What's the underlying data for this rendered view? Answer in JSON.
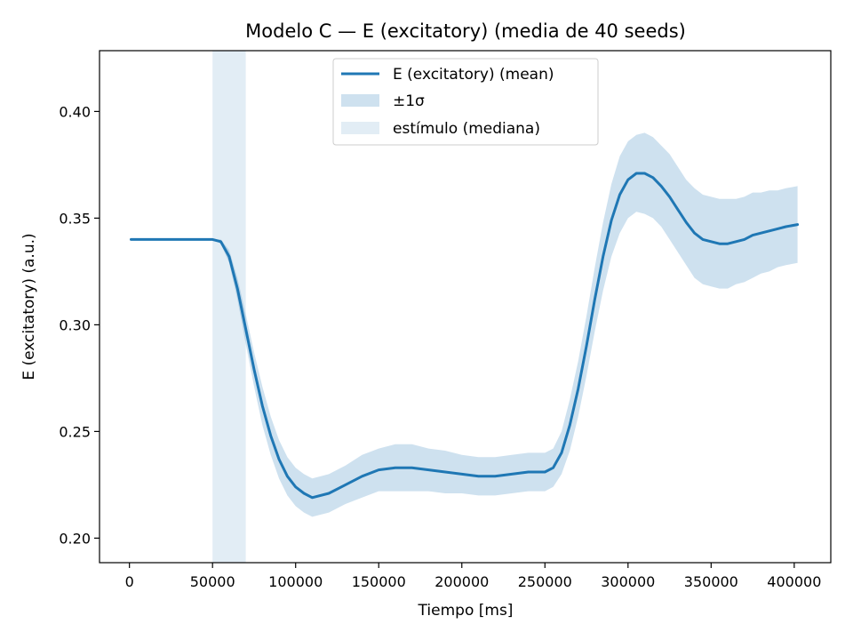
{
  "chart_data": {
    "type": "line",
    "title": "Modelo C — E (excitatory) (media de 40 seeds)",
    "xlabel": "Tiempo [ms]",
    "ylabel": "E (excitatory) (a.u.)",
    "xlim": [
      -18000,
      422000
    ],
    "ylim": [
      0.1885,
      0.4285
    ],
    "xticks": [
      0,
      50000,
      100000,
      150000,
      200000,
      250000,
      300000,
      350000,
      400000
    ],
    "xtick_labels": [
      "0",
      "50000",
      "100000",
      "150000",
      "200000",
      "250000",
      "300000",
      "350000",
      "400000"
    ],
    "yticks": [
      0.2,
      0.25,
      0.3,
      0.35,
      0.4
    ],
    "ytick_labels": [
      "0.20",
      "0.25",
      "0.30",
      "0.35",
      "0.40"
    ],
    "grid": false,
    "legend_position": "top-center",
    "legend": [
      "E (excitatory) (mean)",
      "±1σ",
      "estímulo (mediana)"
    ],
    "colors": {
      "mean": "#1f77b4",
      "band": "#1f77b4",
      "stimulus": "#1f77b4"
    },
    "stimulus": {
      "x_start": 50000,
      "x_end": 70000
    },
    "series": [
      {
        "name": "E (excitatory) (mean)",
        "x": [
          1000,
          20000,
          40000,
          50000,
          55000,
          60000,
          65000,
          70000,
          75000,
          80000,
          85000,
          90000,
          95000,
          100000,
          105000,
          110000,
          120000,
          130000,
          140000,
          150000,
          160000,
          170000,
          180000,
          190000,
          200000,
          210000,
          220000,
          230000,
          240000,
          250000,
          255000,
          260000,
          265000,
          270000,
          275000,
          280000,
          285000,
          290000,
          295000,
          300000,
          305000,
          310000,
          315000,
          320000,
          325000,
          330000,
          335000,
          340000,
          345000,
          350000,
          355000,
          360000,
          365000,
          370000,
          375000,
          380000,
          385000,
          390000,
          395000,
          402000
        ],
        "mean": [
          0.34,
          0.34,
          0.34,
          0.34,
          0.339,
          0.332,
          0.317,
          0.298,
          0.279,
          0.262,
          0.248,
          0.237,
          0.229,
          0.224,
          0.221,
          0.219,
          0.221,
          0.225,
          0.229,
          0.232,
          0.233,
          0.233,
          0.232,
          0.231,
          0.23,
          0.229,
          0.229,
          0.23,
          0.231,
          0.231,
          0.233,
          0.24,
          0.253,
          0.27,
          0.29,
          0.312,
          0.332,
          0.349,
          0.361,
          0.368,
          0.371,
          0.371,
          0.369,
          0.365,
          0.36,
          0.354,
          0.348,
          0.343,
          0.34,
          0.339,
          0.338,
          0.338,
          0.339,
          0.34,
          0.342,
          0.343,
          0.344,
          0.345,
          0.346,
          0.347
        ],
        "sd": [
          0,
          0,
          0,
          0,
          0.001,
          0.003,
          0.005,
          0.007,
          0.008,
          0.009,
          0.009,
          0.009,
          0.009,
          0.009,
          0.009,
          0.009,
          0.009,
          0.009,
          0.01,
          0.01,
          0.011,
          0.011,
          0.01,
          0.01,
          0.009,
          0.009,
          0.009,
          0.009,
          0.009,
          0.009,
          0.009,
          0.01,
          0.012,
          0.013,
          0.014,
          0.015,
          0.016,
          0.017,
          0.018,
          0.018,
          0.018,
          0.019,
          0.019,
          0.019,
          0.02,
          0.02,
          0.02,
          0.021,
          0.021,
          0.021,
          0.021,
          0.021,
          0.02,
          0.02,
          0.02,
          0.019,
          0.019,
          0.018,
          0.018,
          0.018
        ]
      }
    ]
  }
}
